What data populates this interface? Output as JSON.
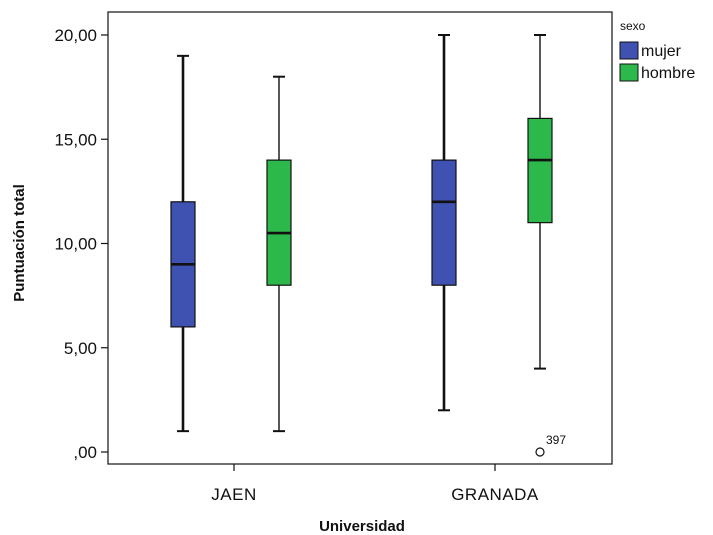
{
  "chart_data": {
    "type": "boxplot",
    "xlabel": "Universidad",
    "ylabel": "Puntuación total",
    "ylim": [
      0,
      20
    ],
    "y_ticks": [
      {
        "value": 0,
        "label": ",00"
      },
      {
        "value": 5,
        "label": "5,00"
      },
      {
        "value": 10,
        "label": "10,00"
      },
      {
        "value": 15,
        "label": "15,00"
      },
      {
        "value": 20,
        "label": "20,00"
      }
    ],
    "categories": [
      "JAEN",
      "GRANADA"
    ],
    "legend": {
      "title": "sexo",
      "placement": "top-right"
    },
    "series": [
      {
        "name": "mujer",
        "color": "#3f51b1",
        "boxes": [
          {
            "category": "JAEN",
            "min": 1,
            "q1": 6,
            "median": 9,
            "q3": 12,
            "max": 19,
            "outliers": []
          },
          {
            "category": "GRANADA",
            "min": 2,
            "q1": 8,
            "median": 12,
            "q3": 14,
            "max": 20,
            "outliers": []
          }
        ]
      },
      {
        "name": "hombre",
        "color": "#2db84b",
        "boxes": [
          {
            "category": "JAEN",
            "min": 1,
            "q1": 8,
            "median": 10.5,
            "q3": 14,
            "max": 18,
            "outliers": []
          },
          {
            "category": "GRANADA",
            "min": 4,
            "q1": 11,
            "median": 14,
            "q3": 16,
            "max": 20,
            "outliers": [
              {
                "value": 0,
                "label": "397"
              }
            ]
          }
        ]
      }
    ],
    "grid": false
  }
}
